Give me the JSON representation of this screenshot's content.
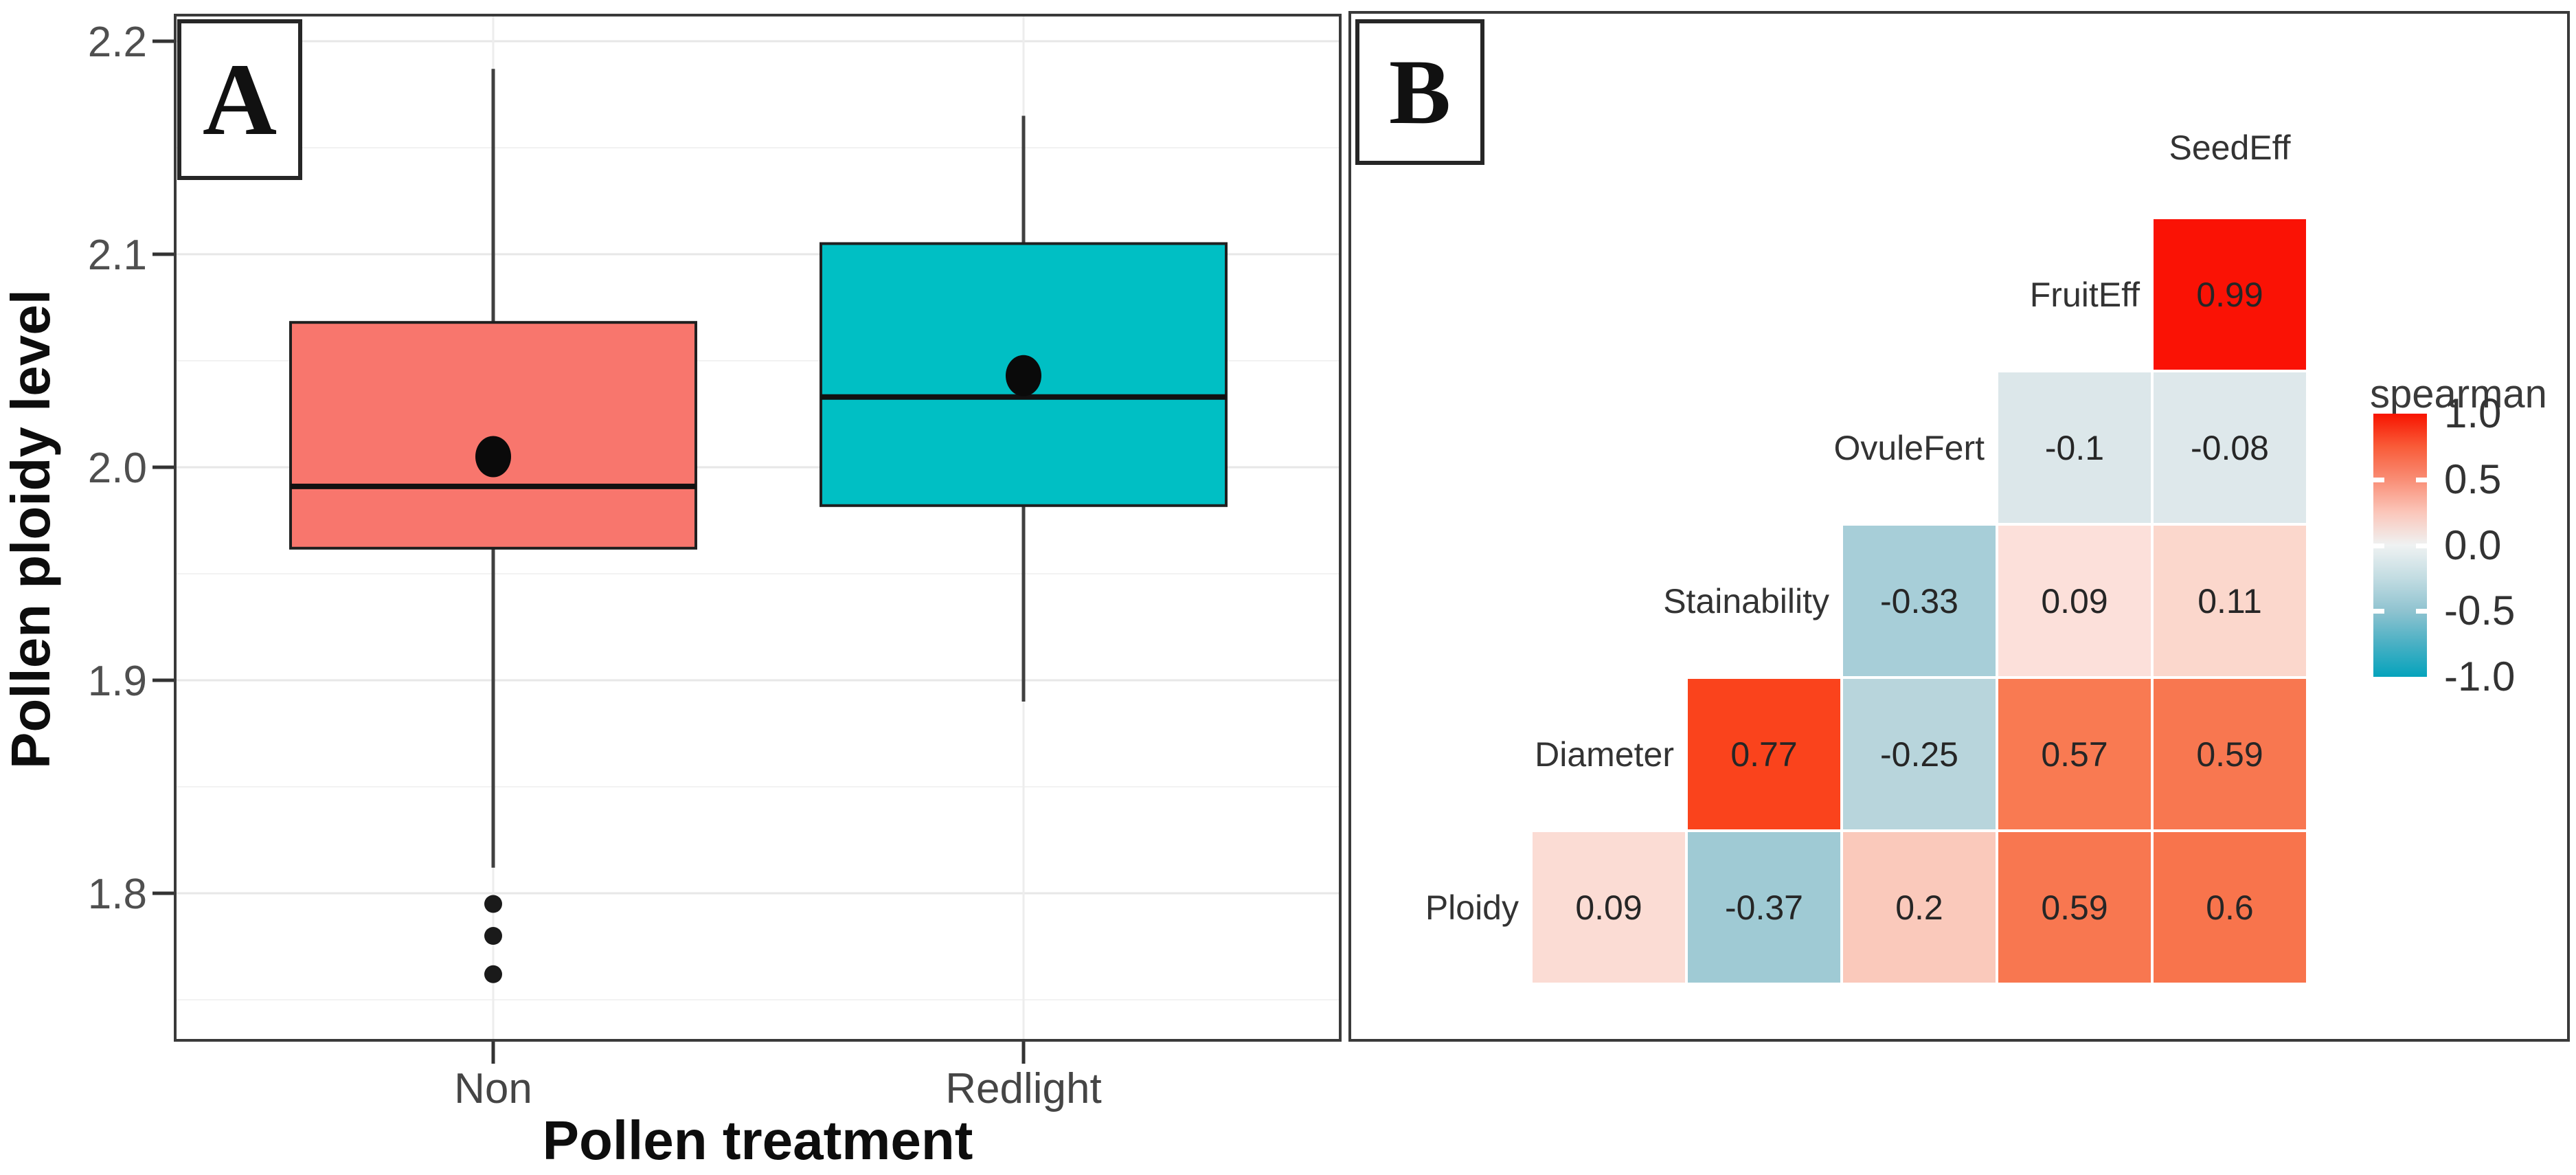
{
  "panels": {
    "a": {
      "tag": "A"
    },
    "b": {
      "tag": "B"
    }
  },
  "chart_data": [
    {
      "type": "boxplot",
      "panel": "A",
      "xlabel": "Pollen treatment",
      "ylabel": "Pollen ploidy level",
      "y_ticks": [
        {
          "v": 2.2,
          "label": "2.2"
        },
        {
          "v": 2.1,
          "label": "2.1"
        },
        {
          "v": 2.0,
          "label": "2.0"
        },
        {
          "v": 1.9,
          "label": "1.9"
        },
        {
          "v": 1.8,
          "label": "1.8"
        }
      ],
      "ylim": [
        1.73,
        2.213
      ],
      "grid": true,
      "groups": [
        {
          "label": "Non",
          "color": "#F8766D",
          "whisker_low": 1.812,
          "q1": 1.962,
          "median": 1.991,
          "mean": 2.005,
          "q3": 2.068,
          "whisker_high": 2.187,
          "outliers": [
            1.795,
            1.78,
            1.762
          ]
        },
        {
          "label": "Redlight",
          "color": "#00BFC4",
          "whisker_low": 1.89,
          "q1": 1.982,
          "median": 2.033,
          "mean": 2.043,
          "q3": 2.105,
          "whisker_high": 2.165,
          "outliers": []
        }
      ]
    },
    {
      "type": "heatmap",
      "panel": "B",
      "subtype": "lower-triangle correlation matrix",
      "columns": [
        "Diameter",
        "Stainability",
        "OvuleFert",
        "FruitEff",
        "SeedEff"
      ],
      "top_label": "SeedEff",
      "rows": [
        {
          "label": "FruitEff",
          "cells": [
            {
              "col": 5,
              "value": "0.99",
              "color": "#FA1205"
            }
          ]
        },
        {
          "label": "OvuleFert",
          "cells": [
            {
              "col": 4,
              "value": "-0.1",
              "color": "#DCE7EA"
            },
            {
              "col": 5,
              "value": "-0.08",
              "color": "#DEE8EB"
            }
          ]
        },
        {
          "label": "Stainability",
          "cells": [
            {
              "col": 3,
              "value": "-0.33",
              "color": "#A7CED8"
            },
            {
              "col": 4,
              "value": "0.09",
              "color": "#FCE0DA"
            },
            {
              "col": 5,
              "value": "0.11",
              "color": "#FBD7CC"
            }
          ]
        },
        {
          "label": "Diameter",
          "cells": [
            {
              "col": 2,
              "value": "0.77",
              "color": "#FA431C"
            },
            {
              "col": 3,
              "value": "-0.25",
              "color": "#B8D5DC"
            },
            {
              "col": 4,
              "value": "0.57",
              "color": "#F97A52"
            },
            {
              "col": 5,
              "value": "0.59",
              "color": "#F87750"
            }
          ]
        },
        {
          "label": "Ploidy",
          "cells": [
            {
              "col": 1,
              "value": "0.09",
              "color": "#FBDCD4"
            },
            {
              "col": 2,
              "value": "-0.37",
              "color": "#9FCAD4"
            },
            {
              "col": 3,
              "value": "0.2",
              "color": "#FAC9BB"
            },
            {
              "col": 4,
              "value": "0.59",
              "color": "#F87750"
            },
            {
              "col": 5,
              "value": "0.6",
              "color": "#F8744C"
            }
          ]
        }
      ],
      "legend": {
        "title": "spearman",
        "ticks": [
          {
            "v": 1.0,
            "label": "1.0"
          },
          {
            "v": 0.5,
            "label": "0.5"
          },
          {
            "v": 0.0,
            "label": "0.0"
          },
          {
            "v": -0.5,
            "label": "-0.5"
          },
          {
            "v": -1.0,
            "label": "-1.0"
          }
        ],
        "notch_values": [
          0.5,
          0.0,
          -0.5
        ],
        "gradient_stops": [
          [
            "0%",
            "#F81400"
          ],
          [
            "12.5%",
            "#F95B38"
          ],
          [
            "25%",
            "#F98D75"
          ],
          [
            "37.5%",
            "#FBC6BA"
          ],
          [
            "50%",
            "#EFF2F2"
          ],
          [
            "62.5%",
            "#C2DCE2"
          ],
          [
            "75%",
            "#8FC3D0"
          ],
          [
            "87.5%",
            "#49B0C4"
          ],
          [
            "100%",
            "#05A3BC"
          ]
        ]
      }
    }
  ]
}
